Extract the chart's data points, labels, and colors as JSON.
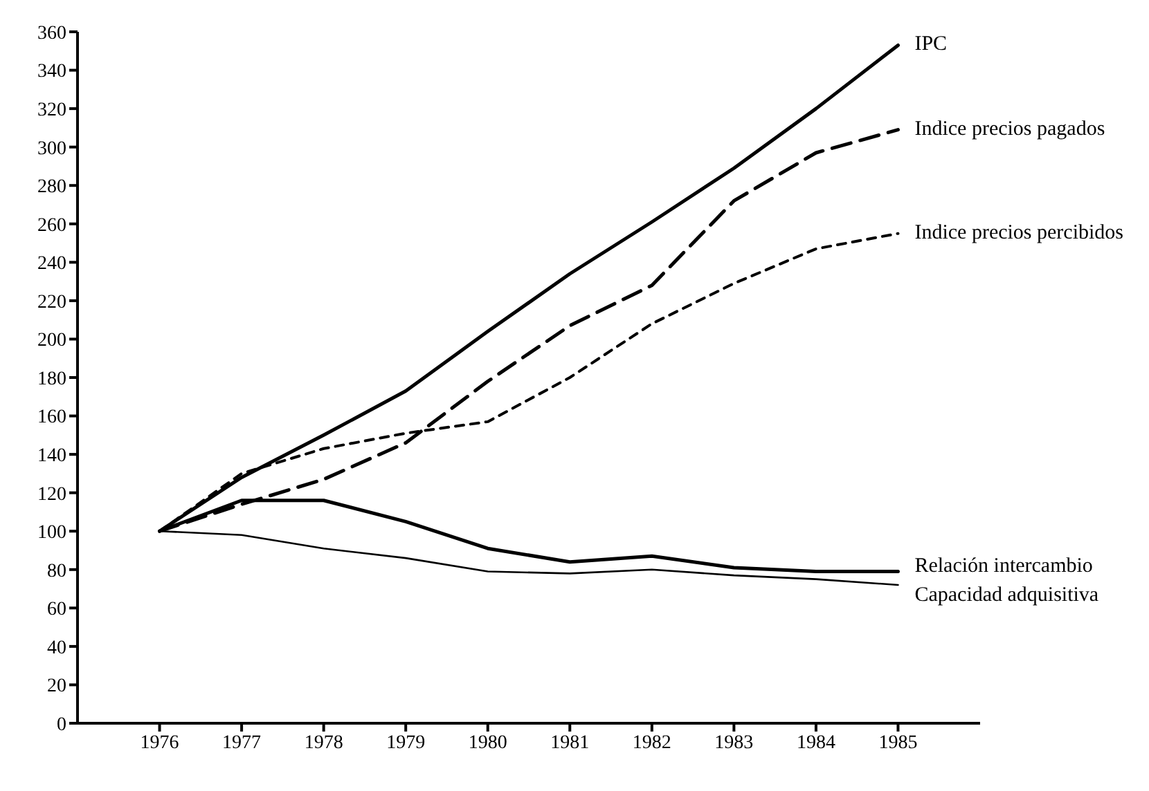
{
  "chart_data": {
    "type": "line",
    "x": [
      1976,
      1977,
      1978,
      1979,
      1980,
      1981,
      1982,
      1983,
      1984,
      1985
    ],
    "series": [
      {
        "name": "IPC",
        "color": "#000000",
        "line_style": "solid",
        "values": [
          100,
          128,
          150,
          173,
          204,
          234,
          261,
          289,
          320,
          353
        ]
      },
      {
        "name": "Indice precios pagados",
        "color": "#000000",
        "line_style": "dashed",
        "values": [
          100,
          114,
          127,
          146,
          178,
          207,
          228,
          272,
          297,
          309
        ]
      },
      {
        "name": "Indice precios percibidos",
        "color": "#000000",
        "line_style": "dotted",
        "values": [
          100,
          130,
          143,
          151,
          157,
          180,
          208,
          229,
          247,
          255
        ]
      },
      {
        "name": "Relación intercambio",
        "color": "#000000",
        "line_style": "solid",
        "values": [
          100,
          116,
          116,
          105,
          91,
          84,
          87,
          81,
          79,
          79
        ]
      },
      {
        "name": "Capacidad adquisitiva",
        "color": "#000000",
        "line_style": "solid",
        "values": [
          100,
          98,
          91,
          86,
          79,
          78,
          80,
          77,
          75,
          72
        ]
      }
    ],
    "xlim": [
      1975,
      1986
    ],
    "xticks": [
      1976,
      1977,
      1978,
      1979,
      1980,
      1981,
      1982,
      1983,
      1984,
      1985
    ],
    "ylim": [
      0,
      360
    ],
    "yticks": [
      0,
      20,
      40,
      60,
      80,
      100,
      120,
      140,
      160,
      180,
      200,
      220,
      240,
      260,
      280,
      300,
      320,
      340,
      360
    ],
    "grid": false,
    "legend": false,
    "marker": "none"
  }
}
